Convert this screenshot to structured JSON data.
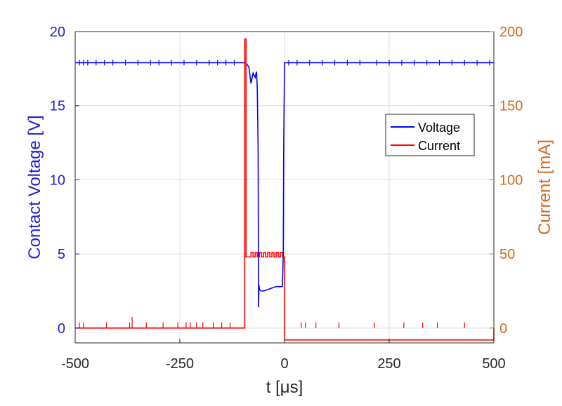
{
  "chart_data": {
    "type": "line",
    "xlabel": "t [μs]",
    "ylabel_left": "Contact Voltage [V]",
    "ylabel_right": "Current [mA]",
    "xlim": [
      -500,
      500
    ],
    "ylim_left": [
      -1,
      20
    ],
    "ylim_right": [
      -10,
      200
    ],
    "x_ticks": [
      -500,
      -250,
      0,
      250,
      500
    ],
    "y_left_ticks": [
      0,
      5,
      10,
      15,
      20
    ],
    "y_right_ticks": [
      0,
      50,
      100,
      150,
      200
    ],
    "grid": true,
    "legend_position": "right-center",
    "colors": {
      "left_axis": "#1f1fd6",
      "right_axis": "#d2691e",
      "voltage": "#0000ff",
      "current": "#ff0000"
    },
    "series": [
      {
        "name": "Voltage",
        "axis": "left",
        "x": [
          -500,
          -95,
          -90,
          -85,
          -80,
          -75,
          -70,
          -67,
          -65,
          -63,
          -62,
          -61,
          -60,
          -55,
          -50,
          -40,
          -30,
          -20,
          -10,
          -5,
          -3,
          -2,
          0,
          500
        ],
        "y": [
          17.9,
          17.9,
          17.8,
          17.6,
          16.5,
          17.2,
          16.9,
          17.3,
          16.2,
          12.0,
          1.4,
          2.9,
          2.6,
          2.5,
          2.5,
          2.6,
          2.7,
          2.8,
          2.8,
          2.8,
          5.0,
          12.0,
          17.9,
          17.9
        ]
      },
      {
        "name": "Current",
        "axis": "right",
        "x": [
          -500,
          -96,
          -95,
          -93,
          -92,
          -91,
          -85,
          -80,
          -75,
          -70,
          -65,
          -60,
          -55,
          -50,
          -45,
          -40,
          -35,
          -30,
          -25,
          -20,
          -15,
          -10,
          -5,
          -2,
          0,
          500
        ],
        "y": [
          0,
          0,
          195,
          195,
          48,
          48,
          48,
          51,
          48,
          51,
          48,
          51,
          48,
          51,
          48,
          51,
          48,
          51,
          48,
          51,
          48,
          51,
          48,
          48,
          -8,
          0
        ]
      }
    ],
    "spikes": {
      "current_x": [
        -490,
        -480,
        -425,
        -370,
        -364,
        -330,
        -290,
        -255,
        -235,
        -225,
        -210,
        -195,
        -170,
        -150,
        -130,
        40,
        50,
        75,
        130,
        215,
        285,
        330,
        365,
        430
      ],
      "voltage_x": [
        -490,
        -480,
        -470,
        -450,
        -430,
        -410,
        -380,
        -350,
        -320,
        -300,
        -270,
        -240,
        -210,
        -180,
        -160,
        -140,
        -120,
        10,
        30,
        60,
        90,
        120,
        150,
        180,
        220,
        250,
        280,
        310,
        340,
        370,
        400,
        430,
        460,
        490
      ]
    },
    "legend": [
      "Voltage",
      "Current"
    ]
  }
}
